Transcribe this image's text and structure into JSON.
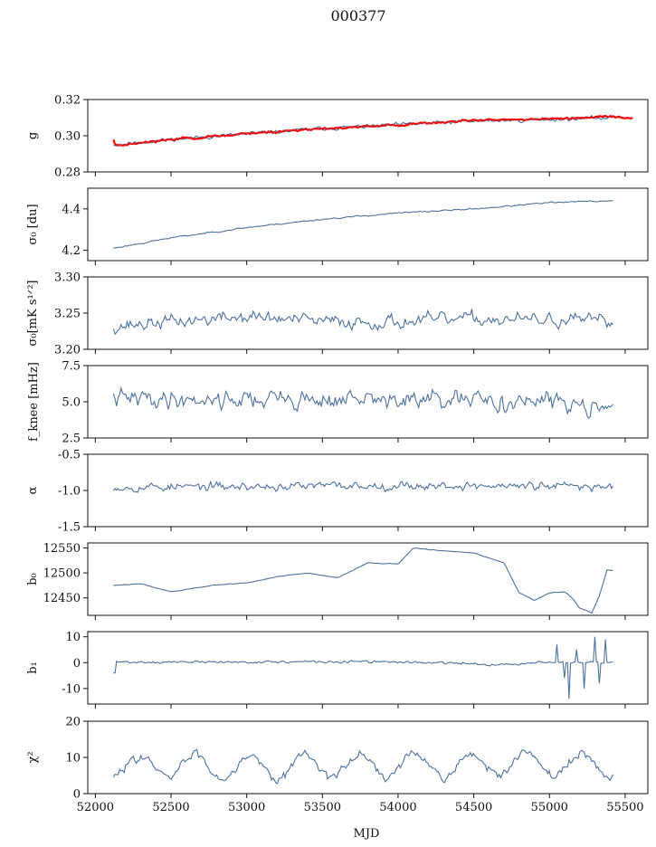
{
  "title": "000377",
  "xlabel": "MJD",
  "chart_data": {
    "type": "line",
    "title": "000377",
    "xlabel": "MJD",
    "xlim": [
      51950,
      55650
    ],
    "xticks": [
      "52000",
      "52500",
      "53000",
      "53500",
      "54000",
      "54500",
      "55000",
      "55500"
    ],
    "data_range": [
      52120,
      55420
    ],
    "colors": {
      "series": "#4c72a0",
      "overlay": "#ff0000"
    },
    "panels": [
      {
        "id": "g",
        "ylabel": "g",
        "ylim": [
          0.28,
          0.32
        ],
        "yticks": [
          "0.28",
          "0.30",
          "0.32"
        ],
        "trend": [
          [
            52120,
            0.295
          ],
          [
            52500,
            0.298
          ],
          [
            53000,
            0.301
          ],
          [
            53500,
            0.304
          ],
          [
            54000,
            0.306
          ],
          [
            54500,
            0.308
          ],
          [
            55000,
            0.309
          ],
          [
            55420,
            0.31
          ]
        ],
        "noise": 0.0009,
        "seed": 11,
        "npts": 330,
        "overlay": {
          "name": "",
          "trend": [
            [
              52120,
              0.2945
            ],
            [
              52500,
              0.298
            ],
            [
              53000,
              0.301
            ],
            [
              53500,
              0.304
            ],
            [
              54000,
              0.306
            ],
            [
              54500,
              0.3085
            ],
            [
              55000,
              0.3095
            ],
            [
              55400,
              0.3105
            ],
            [
              55550,
              0.31
            ]
          ],
          "noise": 0.0005,
          "xmax": 55550
        }
      },
      {
        "id": "sigma0",
        "ylabel": "σ₀ [du]",
        "ylim": [
          4.15,
          4.5
        ],
        "yticks": [
          "4.2",
          "4.4"
        ],
        "trend": [
          [
            52120,
            4.21
          ],
          [
            52500,
            4.26
          ],
          [
            53000,
            4.31
          ],
          [
            53500,
            4.35
          ],
          [
            54000,
            4.38
          ],
          [
            54500,
            4.4
          ],
          [
            55000,
            4.43
          ],
          [
            55420,
            4.44
          ]
        ],
        "noise": 0.003,
        "seed": 23,
        "npts": 330
      },
      {
        "id": "sigma0-mks",
        "ylabel": "σ₀[mK s¹ᐟ²]",
        "ylim": [
          3.2,
          3.3
        ],
        "yticks": [
          "3.20",
          "3.25",
          "3.30"
        ],
        "trend": [
          [
            52120,
            3.232
          ],
          [
            52500,
            3.238
          ],
          [
            53000,
            3.245
          ],
          [
            53500,
            3.238
          ],
          [
            54000,
            3.238
          ],
          [
            54500,
            3.242
          ],
          [
            55000,
            3.24
          ],
          [
            55420,
            3.238
          ]
        ],
        "noise": 0.008,
        "seed": 37,
        "npts": 330
      },
      {
        "id": "fknee",
        "ylabel": "f_knee [mHz]",
        "ylim": [
          2.5,
          7.5
        ],
        "yticks": [
          "2.5",
          "5.0",
          "7.5"
        ],
        "trend": [
          [
            52120,
            5.2
          ],
          [
            53000,
            5.2
          ],
          [
            54000,
            5.1
          ],
          [
            55420,
            4.9
          ]
        ],
        "noise": 0.55,
        "seed": 41,
        "npts": 330
      },
      {
        "id": "alpha",
        "ylabel": "α",
        "ylim": [
          -1.5,
          -0.5
        ],
        "yticks": [
          "-1.5",
          "-1.0",
          "-0.5"
        ],
        "trend": [
          [
            52120,
            -0.95
          ],
          [
            53000,
            -0.95
          ],
          [
            54000,
            -0.93
          ],
          [
            55420,
            -0.95
          ]
        ],
        "noise": 0.05,
        "seed": 53,
        "npts": 330
      },
      {
        "id": "b0",
        "ylabel": "b₀",
        "ylim": [
          12415,
          12560
        ],
        "yticks": [
          "12450",
          "12500",
          "12550"
        ],
        "trend": [
          [
            52120,
            12475
          ],
          [
            52300,
            12478
          ],
          [
            52500,
            12462
          ],
          [
            52800,
            12476
          ],
          [
            53000,
            12480
          ],
          [
            53200,
            12492
          ],
          [
            53400,
            12500
          ],
          [
            53600,
            12490
          ],
          [
            53800,
            12520
          ],
          [
            54000,
            12518
          ],
          [
            54100,
            12550
          ],
          [
            54300,
            12544
          ],
          [
            54500,
            12540
          ],
          [
            54700,
            12520
          ],
          [
            54800,
            12460
          ],
          [
            54900,
            12445
          ],
          [
            55000,
            12460
          ],
          [
            55100,
            12462
          ],
          [
            55150,
            12450
          ],
          [
            55200,
            12430
          ],
          [
            55280,
            12420
          ],
          [
            55330,
            12455
          ],
          [
            55380,
            12505
          ],
          [
            55420,
            12505
          ]
        ],
        "noise": 0.6,
        "seed": 61,
        "npts": 330
      },
      {
        "id": "b1",
        "ylabel": "b₁",
        "ylim": [
          -16,
          12
        ],
        "yticks": [
          "-10",
          "0",
          "10"
        ],
        "trend": [
          [
            52120,
            0.2
          ],
          [
            54000,
            0.3
          ],
          [
            54700,
            -0.8
          ],
          [
            55000,
            0.2
          ],
          [
            55420,
            -0.2
          ]
        ],
        "noise": 0.4,
        "seed": 71,
        "npts": 330,
        "spikes": [
          [
            52125,
            -4
          ],
          [
            55050,
            7
          ],
          [
            55100,
            -6
          ],
          [
            55130,
            -14
          ],
          [
            55180,
            5
          ],
          [
            55230,
            -10
          ],
          [
            55300,
            10
          ],
          [
            55330,
            -8
          ],
          [
            55370,
            9
          ]
        ]
      },
      {
        "id": "chi2",
        "ylabel": "χ²",
        "ylim": [
          0,
          20
        ],
        "yticks": [
          "0",
          "10",
          "20"
        ],
        "trend": [
          [
            52120,
            7.5
          ],
          [
            55420,
            8
          ]
        ],
        "noise": 1.1,
        "seed": 83,
        "npts": 330,
        "periodic": {
          "amplitude": 3.2,
          "period": 365,
          "phase": 52200
        }
      }
    ]
  }
}
